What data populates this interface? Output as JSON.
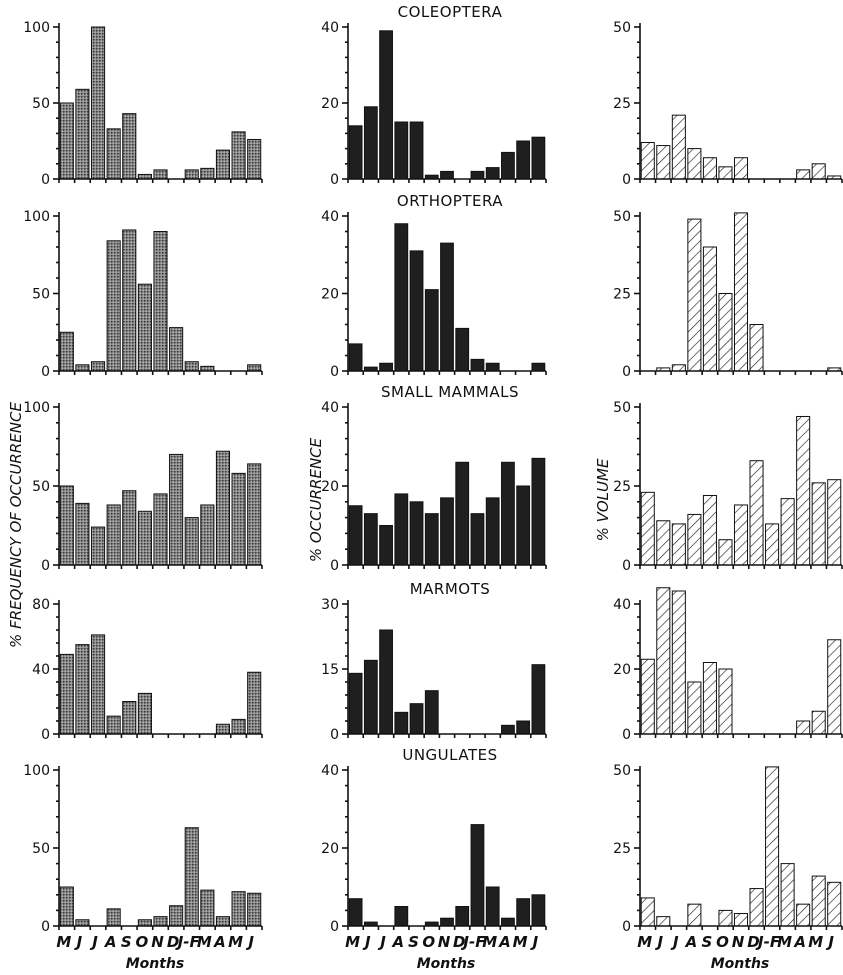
{
  "months": [
    "M",
    "J",
    "J",
    "A",
    "S",
    "O",
    "N",
    "D",
    "J-F",
    "M",
    "A",
    "M",
    "J"
  ],
  "xaxis_label": "Months",
  "column_ylabels": [
    "% FREQUENCY OF OCCURRENCE",
    "% OCCURRENCE",
    "% VOLUME"
  ],
  "chart_data": [
    {
      "type": "bar",
      "prey": "COLEOPTERA",
      "column": "frequency",
      "title": "",
      "ylim": [
        0,
        100
      ],
      "yticks": [
        0,
        50,
        100
      ],
      "categories": [
        "M",
        "J",
        "J",
        "A",
        "S",
        "O",
        "N",
        "D",
        "J-F",
        "M",
        "A",
        "M",
        "J"
      ],
      "values": [
        50,
        59,
        100,
        33,
        43,
        3,
        6,
        0,
        6,
        7,
        19,
        31,
        26
      ],
      "style": "stipple"
    },
    {
      "type": "bar",
      "prey": "COLEOPTERA",
      "column": "occurrence",
      "title": "COLEOPTERA",
      "ylim": [
        0,
        40
      ],
      "yticks": [
        0,
        20,
        40
      ],
      "categories": [
        "M",
        "J",
        "J",
        "A",
        "S",
        "O",
        "N",
        "D",
        "J-F",
        "M",
        "A",
        "M",
        "J"
      ],
      "values": [
        14,
        19,
        39,
        15,
        15,
        1,
        2,
        0,
        2,
        3,
        7,
        10,
        11
      ],
      "style": "solid"
    },
    {
      "type": "bar",
      "prey": "COLEOPTERA",
      "column": "volume",
      "title": "",
      "ylim": [
        0,
        50
      ],
      "yticks": [
        0,
        25,
        50
      ],
      "categories": [
        "M",
        "J",
        "J",
        "A",
        "S",
        "O",
        "N",
        "D",
        "J-F",
        "M",
        "A",
        "M",
        "J"
      ],
      "values": [
        12,
        11,
        21,
        10,
        7,
        4,
        7,
        0,
        0,
        0,
        3,
        5,
        1
      ],
      "style": "hatch"
    },
    {
      "type": "bar",
      "prey": "ORTHOPTERA",
      "column": "frequency",
      "title": "",
      "ylim": [
        0,
        100
      ],
      "yticks": [
        0,
        50,
        100
      ],
      "categories": [
        "M",
        "J",
        "J",
        "A",
        "S",
        "O",
        "N",
        "D",
        "J-F",
        "M",
        "A",
        "M",
        "J"
      ],
      "values": [
        25,
        4,
        6,
        84,
        91,
        56,
        90,
        28,
        6,
        3,
        0,
        0,
        4
      ],
      "style": "stipple"
    },
    {
      "type": "bar",
      "prey": "ORTHOPTERA",
      "column": "occurrence",
      "title": "ORTHOPTERA",
      "ylim": [
        0,
        40
      ],
      "yticks": [
        0,
        20,
        40
      ],
      "categories": [
        "M",
        "J",
        "J",
        "A",
        "S",
        "O",
        "N",
        "D",
        "J-F",
        "M",
        "A",
        "M",
        "J"
      ],
      "values": [
        7,
        1,
        2,
        38,
        31,
        21,
        33,
        11,
        3,
        2,
        0,
        0,
        2
      ],
      "style": "solid"
    },
    {
      "type": "bar",
      "prey": "ORTHOPTERA",
      "column": "volume",
      "title": "",
      "ylim": [
        0,
        50
      ],
      "yticks": [
        0,
        25,
        50
      ],
      "categories": [
        "M",
        "J",
        "J",
        "A",
        "S",
        "O",
        "N",
        "D",
        "J-F",
        "M",
        "A",
        "M",
        "J"
      ],
      "values": [
        0,
        1,
        2,
        49,
        40,
        25,
        51,
        15,
        0,
        0,
        0,
        0,
        1
      ],
      "style": "hatch"
    },
    {
      "type": "bar",
      "prey": "SMALL MAMMALS",
      "column": "frequency",
      "title": "",
      "ylim": [
        0,
        100
      ],
      "yticks": [
        0,
        50,
        100
      ],
      "categories": [
        "M",
        "J",
        "J",
        "A",
        "S",
        "O",
        "N",
        "D",
        "J-F",
        "M",
        "A",
        "M",
        "J"
      ],
      "values": [
        50,
        39,
        24,
        38,
        47,
        34,
        45,
        70,
        30,
        38,
        72,
        58,
        64
      ],
      "style": "stipple"
    },
    {
      "type": "bar",
      "prey": "SMALL MAMMALS",
      "column": "occurrence",
      "title": "SMALL MAMMALS",
      "ylim": [
        0,
        40
      ],
      "yticks": [
        0,
        20,
        40
      ],
      "categories": [
        "M",
        "J",
        "J",
        "A",
        "S",
        "O",
        "N",
        "D",
        "J-F",
        "M",
        "A",
        "M",
        "J"
      ],
      "values": [
        15,
        13,
        10,
        18,
        16,
        13,
        17,
        26,
        13,
        17,
        26,
        20,
        27
      ],
      "style": "solid"
    },
    {
      "type": "bar",
      "prey": "SMALL MAMMALS",
      "column": "volume",
      "title": "",
      "ylim": [
        0,
        50
      ],
      "yticks": [
        0,
        25,
        50
      ],
      "categories": [
        "M",
        "J",
        "J",
        "A",
        "S",
        "O",
        "N",
        "D",
        "J-F",
        "M",
        "A",
        "M",
        "J"
      ],
      "values": [
        23,
        14,
        13,
        16,
        22,
        8,
        19,
        33,
        13,
        21,
        47,
        26,
        27
      ],
      "style": "hatch"
    },
    {
      "type": "bar",
      "prey": "MARMOTS",
      "column": "frequency",
      "title": "",
      "ylim": [
        0,
        80
      ],
      "yticks": [
        0,
        40,
        80
      ],
      "categories": [
        "M",
        "J",
        "J",
        "A",
        "S",
        "O",
        "N",
        "D",
        "J-F",
        "M",
        "A",
        "M",
        "J"
      ],
      "values": [
        49,
        55,
        61,
        11,
        20,
        25,
        0,
        0,
        0,
        0,
        6,
        9,
        38
      ],
      "style": "stipple"
    },
    {
      "type": "bar",
      "prey": "MARMOTS",
      "column": "occurrence",
      "title": "MARMOTS",
      "ylim": [
        0,
        30
      ],
      "yticks": [
        0,
        15,
        30
      ],
      "categories": [
        "M",
        "J",
        "J",
        "A",
        "S",
        "O",
        "N",
        "D",
        "J-F",
        "M",
        "A",
        "M",
        "J"
      ],
      "values": [
        14,
        17,
        24,
        5,
        7,
        10,
        0,
        0,
        0,
        0,
        2,
        3,
        16
      ],
      "style": "solid"
    },
    {
      "type": "bar",
      "prey": "MARMOTS",
      "column": "volume",
      "title": "",
      "ylim": [
        0,
        40
      ],
      "yticks": [
        0,
        20,
        40
      ],
      "categories": [
        "M",
        "J",
        "J",
        "A",
        "S",
        "O",
        "N",
        "D",
        "J-F",
        "M",
        "A",
        "M",
        "J"
      ],
      "values": [
        23,
        45,
        44,
        16,
        22,
        20,
        0,
        0,
        0,
        0,
        4,
        7,
        29
      ],
      "style": "hatch"
    },
    {
      "type": "bar",
      "prey": "UNGULATES",
      "column": "frequency",
      "title": "",
      "ylim": [
        0,
        100
      ],
      "yticks": [
        0,
        50,
        100
      ],
      "categories": [
        "M",
        "J",
        "J",
        "A",
        "S",
        "O",
        "N",
        "D",
        "J-F",
        "M",
        "A",
        "M",
        "J"
      ],
      "values": [
        25,
        4,
        0,
        11,
        0,
        4,
        6,
        13,
        63,
        23,
        6,
        22,
        21
      ],
      "style": "stipple"
    },
    {
      "type": "bar",
      "prey": "UNGULATES",
      "column": "occurrence",
      "title": "UNGULATES",
      "ylim": [
        0,
        40
      ],
      "yticks": [
        0,
        20,
        40
      ],
      "categories": [
        "M",
        "J",
        "J",
        "A",
        "S",
        "O",
        "N",
        "D",
        "J-F",
        "M",
        "A",
        "M",
        "J"
      ],
      "values": [
        7,
        1,
        0,
        5,
        0,
        1,
        2,
        5,
        26,
        10,
        2,
        7,
        8
      ],
      "style": "solid"
    },
    {
      "type": "bar",
      "prey": "UNGULATES",
      "column": "volume",
      "title": "",
      "ylim": [
        0,
        50
      ],
      "yticks": [
        0,
        25,
        50
      ],
      "categories": [
        "M",
        "J",
        "J",
        "A",
        "S",
        "O",
        "N",
        "D",
        "J-F",
        "M",
        "A",
        "M",
        "J"
      ],
      "values": [
        9,
        3,
        0,
        7,
        0,
        5,
        4,
        12,
        51,
        20,
        7,
        16,
        14
      ],
      "style": "hatch"
    }
  ]
}
